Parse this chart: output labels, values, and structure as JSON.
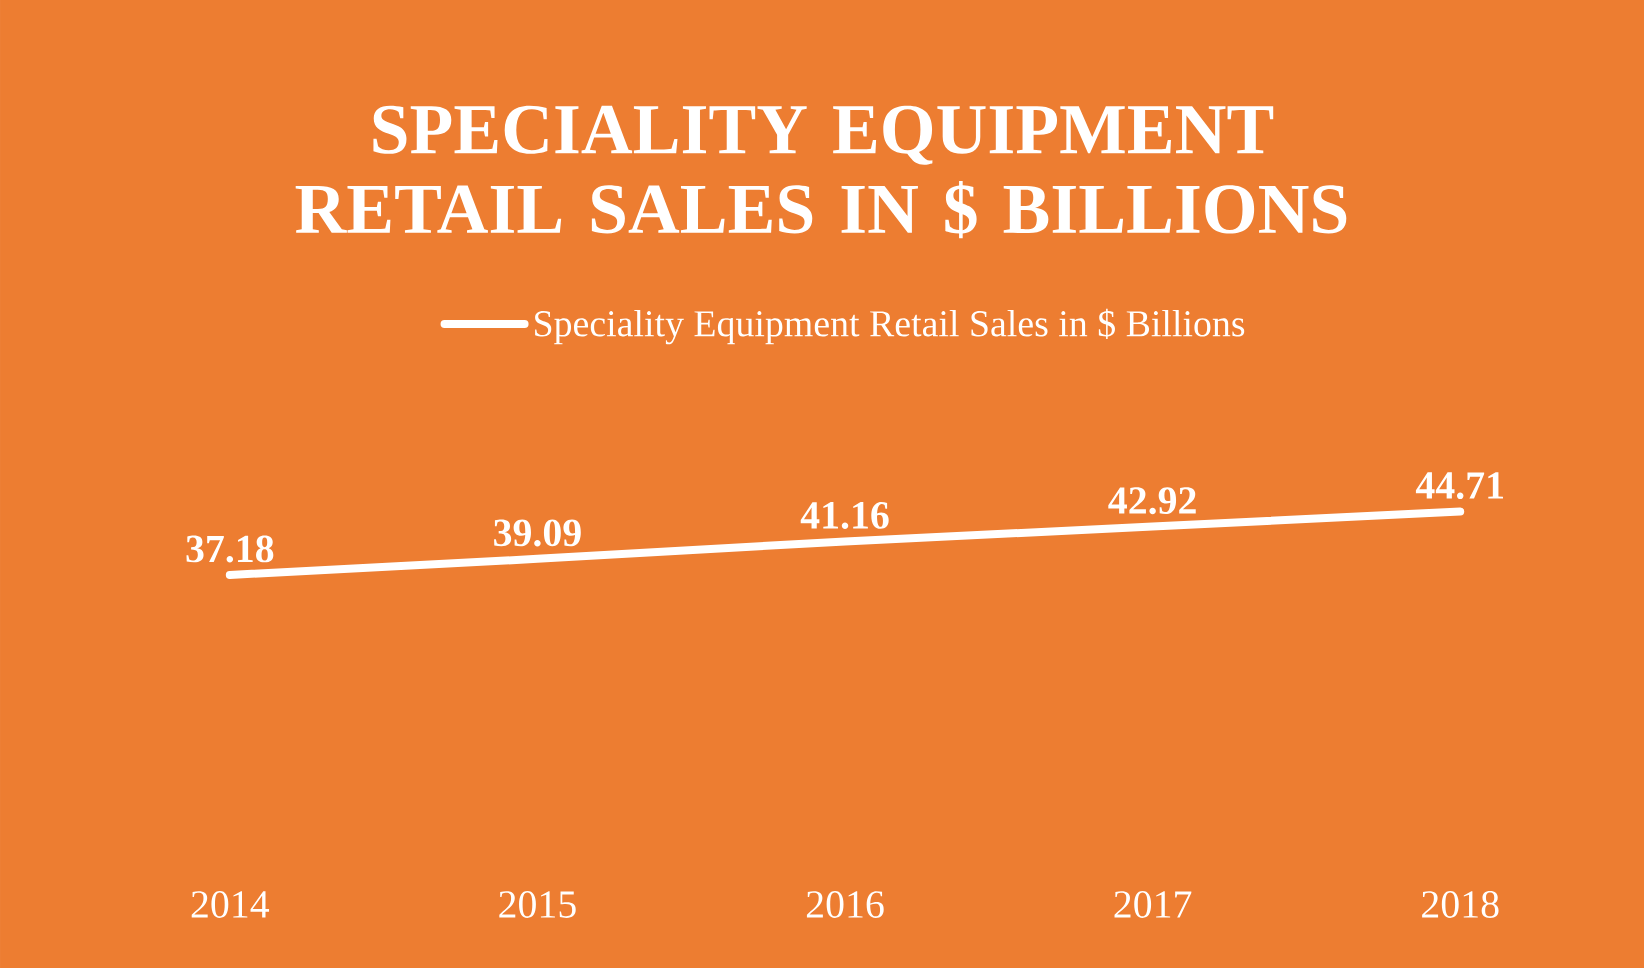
{
  "chart_data": {
    "type": "line",
    "title": "SPECIALITY EQUIPMENT RETAIL SALES IN $ BILLIONS",
    "categories": [
      "2014",
      "2015",
      "2016",
      "2017",
      "2018"
    ],
    "series": [
      {
        "name": "Speciality Equipment Retail Sales in $ Billions",
        "color": "#ffffff",
        "values": [
          37.18,
          39.09,
          41.16,
          42.92,
          44.71
        ]
      }
    ],
    "data_labels": true,
    "legend": "top"
  }
}
